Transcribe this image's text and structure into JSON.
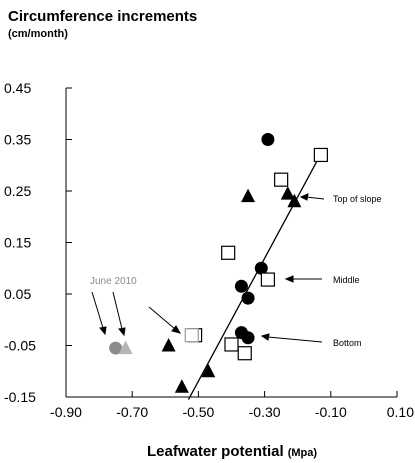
{
  "chart_data": {
    "type": "scatter",
    "title": "Circumference increments",
    "subtitle": "(cm/month)",
    "xlabel": "Leafwater potential",
    "xlabel_unit": "(Mpa)",
    "ylabel": "",
    "xlim": [
      -0.9,
      0.1
    ],
    "ylim": [
      -0.15,
      0.45
    ],
    "x_ticks": [
      "-0.90",
      "-0.70",
      "-0.50",
      "-0.30",
      "-0.10",
      "0.10"
    ],
    "y_ticks": [
      "0.45",
      "0.35",
      "0.25",
      "0.15",
      "0.05",
      "-0.05",
      "-0.15"
    ],
    "grid": false,
    "colors": {
      "main": "#000000",
      "highlight": "#8c8c8c"
    },
    "series": [
      {
        "marker": "circle-filled",
        "points": [
          {
            "x": -0.29,
            "y": 0.35
          },
          {
            "x": -0.31,
            "y": 0.1
          },
          {
            "x": -0.37,
            "y": 0.065
          },
          {
            "x": -0.35,
            "y": 0.042
          },
          {
            "x": -0.37,
            "y": -0.025
          },
          {
            "x": -0.35,
            "y": -0.035
          }
        ]
      },
      {
        "marker": "square-open",
        "points": [
          {
            "x": -0.13,
            "y": 0.32
          },
          {
            "x": -0.25,
            "y": 0.272
          },
          {
            "x": -0.41,
            "y": 0.13
          },
          {
            "x": -0.29,
            "y": 0.078
          },
          {
            "x": -0.51,
            "y": -0.03
          },
          {
            "x": -0.4,
            "y": -0.048
          },
          {
            "x": -0.36,
            "y": -0.065
          }
        ]
      },
      {
        "marker": "triangle-filled",
        "points": [
          {
            "x": -0.23,
            "y": 0.245
          },
          {
            "x": -0.35,
            "y": 0.24
          },
          {
            "x": -0.21,
            "y": 0.23
          },
          {
            "x": -0.59,
            "y": -0.05
          },
          {
            "x": -0.47,
            "y": -0.1
          },
          {
            "x": -0.55,
            "y": -0.13
          }
        ]
      }
    ],
    "highlighted_points": [
      {
        "marker": "circle-filled",
        "x": -0.75,
        "y": -0.055
      },
      {
        "marker": "triangle-filled",
        "x": -0.72,
        "y": -0.055
      }
    ],
    "trendline": {
      "x": [
        -0.53,
        -0.14
      ],
      "y": [
        -0.155,
        0.31
      ]
    },
    "annotations": {
      "top": "Top of slope",
      "middle": "Middle",
      "bottom": "Bottom",
      "june": "June 2010"
    }
  }
}
